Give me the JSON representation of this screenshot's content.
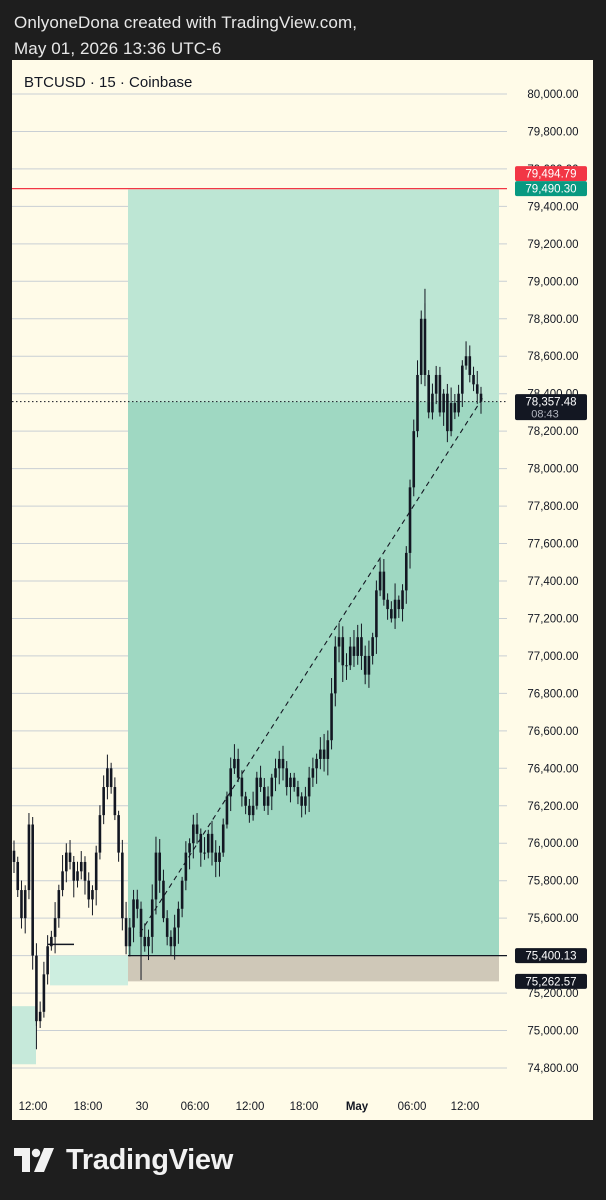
{
  "header": {
    "title": "OnlyoneDona created with TradingView.com,",
    "date": "May 01, 2026 13:36 UTC-6"
  },
  "footer": {
    "brand": "TradingView"
  },
  "chart_data": {
    "type": "candlestick",
    "symbol_label": "BTCUSD · 15 · Coinbase",
    "ylim": [
      74700,
      80200
    ],
    "y_ticks": [
      74800,
      75000,
      75200,
      75400,
      75600,
      75800,
      76000,
      76200,
      76400,
      76600,
      76800,
      77000,
      77200,
      77400,
      77600,
      77800,
      78000,
      78200,
      78400,
      78600,
      78800,
      79000,
      79200,
      79400,
      79600,
      79800,
      80000
    ],
    "y_tick_labels": [
      "74,800.00",
      "75,000.00",
      "75,200.00",
      "75,400.00",
      "75,600.00",
      "75,800.00",
      "76,000.00",
      "76,200.00",
      "76,400.00",
      "76,600.00",
      "76,800.00",
      "77,000.00",
      "77,200.00",
      "77,400.00",
      "77,600.00",
      "77,800.00",
      "78,000.00",
      "78,200.00",
      "78,400.00",
      "78,600.00",
      "78,800.00",
      "79,000.00",
      "79,200.00",
      "79,400.00",
      "79,600.00",
      "79,800.00",
      "80,000.00"
    ],
    "x_tick_labels": [
      "12:00",
      "18:00",
      "30",
      "06:00",
      "12:00",
      "18:00",
      "May",
      "06:00",
      "12:00"
    ],
    "x_tick_bold": [
      false,
      false,
      false,
      false,
      false,
      false,
      true,
      false,
      false
    ],
    "grid": true,
    "current_price": {
      "value": 78357.48,
      "label": "78,357.48",
      "countdown": "08:43"
    },
    "alert_line": {
      "value": 79494.79,
      "label": "79,494.79",
      "color": "#f23645"
    },
    "long_position": {
      "entry": 75400.13,
      "entry_label": "75,400.13",
      "target": 79490.3,
      "target_label": "79,490.30",
      "stop": 75262.57,
      "stop_label": "75,262.57",
      "profit_color": "#bde6d4",
      "active_color": "#9fd8c2",
      "stop_color": "#cfc8b8"
    },
    "trend_line": {
      "from": 75520,
      "to": 78380
    },
    "candle_points": [
      75900,
      75750,
      75600,
      75750,
      76100,
      75400,
      75050,
      75100,
      75300,
      75450,
      75500,
      75600,
      75750,
      75850,
      75950,
      75900,
      75800,
      75850,
      75900,
      75800,
      75700,
      75750,
      75950,
      76150,
      76300,
      76400,
      76300,
      76150,
      75950,
      75600,
      75450,
      75550,
      75700,
      75650,
      75500,
      75450,
      75500,
      75700,
      75950,
      75800,
      75600,
      75500,
      75450,
      75550,
      75650,
      75800,
      75950,
      76000,
      76100,
      76050,
      75950,
      75950,
      76050,
      75950,
      75900,
      75950,
      76100,
      76250,
      76400,
      76450,
      76350,
      76250,
      76200,
      76150,
      76200,
      76350,
      76300,
      76200,
      76250,
      76350,
      76400,
      76450,
      76400,
      76300,
      76350,
      76300,
      76250,
      76200,
      76250,
      76350,
      76400,
      76450,
      76500,
      76450,
      76550,
      76800,
      77050,
      77100,
      76950,
      76950,
      77050,
      77000,
      77100,
      77000,
      76900,
      77000,
      77100,
      77350,
      77450,
      77300,
      77250,
      77200,
      77300,
      77250,
      77350,
      77550,
      77900,
      78200,
      78500,
      78800,
      78500,
      78300,
      78400,
      78500,
      78300,
      78400,
      78200,
      78350,
      78300,
      78400,
      78550,
      78600,
      78500,
      78450,
      78400,
      78357
    ]
  }
}
